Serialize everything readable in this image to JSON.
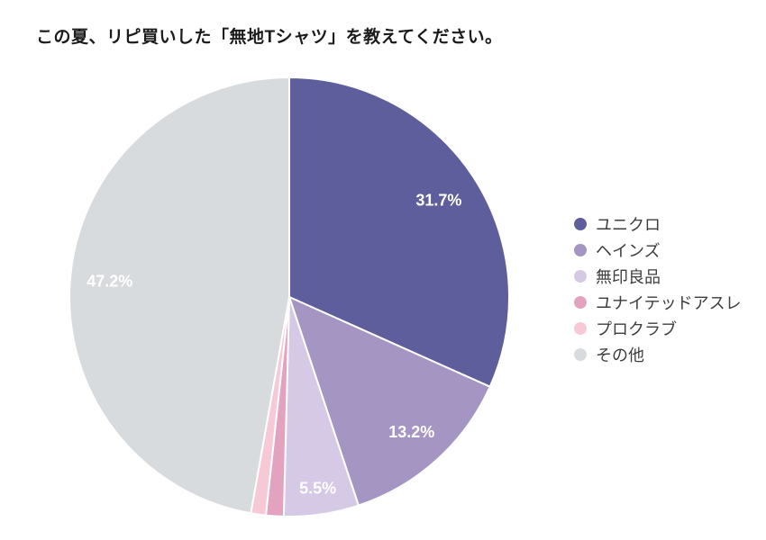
{
  "chart_data": {
    "type": "pie",
    "title": "この夏、リピ買いした「無地Tシャツ」を教えてください。",
    "direction": "clockwise",
    "start_angle_deg": 0,
    "legend_position": "right",
    "label_color": "#ffffff",
    "background_color": "#ffffff",
    "series": [
      {
        "name": "ユニクロ",
        "value": 31.7,
        "label": "31.7%",
        "color": "#5e5e9c"
      },
      {
        "name": "ヘインズ",
        "value": 13.2,
        "label": "13.2%",
        "color": "#a495c3"
      },
      {
        "name": "無印良品",
        "value": 5.5,
        "label": "5.5%",
        "color": "#d6c9e6"
      },
      {
        "name": "ユナイテッドアスレ",
        "value": 1.3,
        "label": "",
        "color": "#e3a2c0"
      },
      {
        "name": "プロクラブ",
        "value": 1.1,
        "label": "",
        "color": "#f7c9d7"
      },
      {
        "name": "その他",
        "value": 47.2,
        "label": "47.2%",
        "color": "#d8dbde"
      }
    ]
  }
}
